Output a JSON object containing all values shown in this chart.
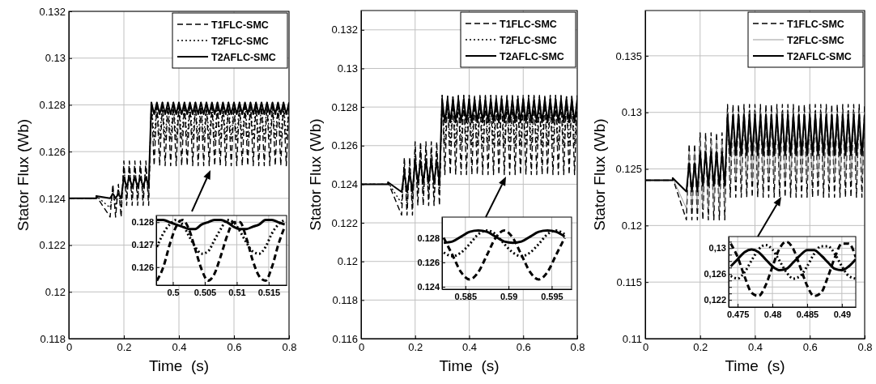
{
  "chart_data": [
    {
      "type": "line",
      "xlabel": "Time  (s)",
      "ylabel": "Stator Flux (Wb)",
      "xlim": [
        0,
        0.8
      ],
      "ylim": [
        0.118,
        0.132
      ],
      "xticks": [
        0,
        0.2,
        0.4,
        0.6,
        0.8
      ],
      "yticks": [
        0.118,
        0.12,
        0.122,
        0.124,
        0.126,
        0.128,
        0.13,
        0.132
      ],
      "grid": true,
      "legend": "top right",
      "x": [
        0,
        0.1,
        0.1,
        0.15,
        0.16,
        0.17,
        0.18,
        0.19,
        0.2,
        0.21,
        0.22,
        0.23,
        0.24,
        0.25,
        0.26,
        0.27,
        0.28,
        0.29,
        0.3,
        0.31,
        0.32,
        0.33,
        0.34,
        0.35,
        0.36,
        0.37,
        0.38,
        0.39,
        0.4,
        0.41,
        0.42,
        0.43,
        0.44,
        0.45,
        0.46,
        0.47,
        0.48,
        0.49,
        0.5,
        0.51,
        0.52,
        0.53,
        0.54,
        0.55,
        0.56,
        0.57,
        0.58,
        0.59,
        0.6,
        0.61,
        0.62,
        0.63,
        0.64,
        0.65,
        0.66,
        0.67,
        0.68,
        0.69,
        0.7,
        0.71,
        0.72,
        0.73,
        0.74,
        0.75,
        0.76,
        0.77,
        0.78,
        0.79,
        0.8
      ],
      "series": [
        {
          "name": "T1FLC-SMC",
          "color": "#000000",
          "line_style": "dashed",
          "values": [
            0.124,
            0.124,
            0.1241,
            0.1232,
            0.1246,
            0.1232,
            0.1246,
            0.1232,
            0.1256,
            0.1237,
            0.1256,
            0.1237,
            0.1256,
            0.1237,
            0.1256,
            0.1237,
            0.1256,
            0.1237,
            0.1281,
            0.1254,
            0.1281,
            0.1254,
            0.1281,
            0.1254,
            0.1281,
            0.1254,
            0.1281,
            0.1254,
            0.1281,
            0.1254,
            0.1281,
            0.1254,
            0.1281,
            0.1254,
            0.1281,
            0.1254,
            0.1281,
            0.1254,
            0.1281,
            0.1254,
            0.1281,
            0.1254,
            0.1281,
            0.1254,
            0.1281,
            0.1254,
            0.1281,
            0.1254,
            0.1281,
            0.1254,
            0.1281,
            0.1254,
            0.1281,
            0.1254,
            0.1281,
            0.1254,
            0.1281,
            0.1254,
            0.1281,
            0.1254,
            0.1281,
            0.1254,
            0.1281,
            0.1254,
            0.1281,
            0.1254,
            0.1281,
            0.1254,
            0.1281
          ]
        },
        {
          "name": "T2FLC-SMC",
          "color": "#000000",
          "line_style": "dotted",
          "values": [
            0.124,
            0.124,
            0.1241,
            0.1236,
            0.1244,
            0.1236,
            0.1244,
            0.1236,
            0.1253,
            0.1241,
            0.1253,
            0.1241,
            0.1253,
            0.1241,
            0.1253,
            0.1241,
            0.1253,
            0.1241,
            0.1281,
            0.1265,
            0.1281,
            0.1265,
            0.1281,
            0.1265,
            0.1281,
            0.1265,
            0.1281,
            0.1265,
            0.1281,
            0.1265,
            0.1281,
            0.1265,
            0.1281,
            0.1265,
            0.1281,
            0.1265,
            0.1281,
            0.1265,
            0.1281,
            0.1265,
            0.1281,
            0.1265,
            0.1281,
            0.1265,
            0.1281,
            0.1265,
            0.1281,
            0.1265,
            0.1281,
            0.1265,
            0.1281,
            0.1265,
            0.1281,
            0.1265,
            0.1281,
            0.1265,
            0.1281,
            0.1265,
            0.1281,
            0.1265,
            0.1281,
            0.1265,
            0.1281,
            0.1265,
            0.1281,
            0.1265,
            0.1281,
            0.1265,
            0.1281
          ]
        },
        {
          "name": "T2AFLC-SMC",
          "color": "#000000",
          "line_style": "solid",
          "values": [
            0.124,
            0.124,
            0.1241,
            0.124,
            0.1242,
            0.124,
            0.1242,
            0.124,
            0.1249,
            0.1245,
            0.1249,
            0.1245,
            0.1249,
            0.1245,
            0.1249,
            0.1245,
            0.1249,
            0.1245,
            0.1281,
            0.1276,
            0.1281,
            0.1276,
            0.1281,
            0.1276,
            0.1281,
            0.1276,
            0.1281,
            0.1276,
            0.1281,
            0.1276,
            0.1281,
            0.1276,
            0.1281,
            0.1276,
            0.1281,
            0.1276,
            0.1281,
            0.1276,
            0.1281,
            0.1276,
            0.1281,
            0.1276,
            0.1281,
            0.1276,
            0.1281,
            0.1276,
            0.1281,
            0.1276,
            0.1281,
            0.1276,
            0.1281,
            0.1276,
            0.1281,
            0.1276,
            0.1281,
            0.1276,
            0.1281,
            0.1276,
            0.1281,
            0.1276,
            0.1281,
            0.1276,
            0.1281,
            0.1276,
            0.1281,
            0.1276,
            0.1281,
            0.1276,
            0.1281
          ]
        }
      ]
    },
    {
      "type": "line",
      "xlabel": "Time  (s)",
      "ylabel": "Stator Flux (Wb)",
      "xlim": [
        0,
        0.8
      ],
      "ylim": [
        0.116,
        0.133
      ],
      "xticks": [
        0,
        0.2,
        0.4,
        0.6,
        0.8
      ],
      "yticks": [
        0.116,
        0.118,
        0.12,
        0.122,
        0.124,
        0.126,
        0.128,
        0.13,
        0.132
      ],
      "grid": true,
      "legend": "top right",
      "x": [
        0,
        0.1,
        0.1,
        0.15,
        0.16,
        0.17,
        0.18,
        0.19,
        0.2,
        0.21,
        0.22,
        0.23,
        0.24,
        0.25,
        0.26,
        0.27,
        0.28,
        0.29,
        0.3,
        0.31,
        0.32,
        0.33,
        0.34,
        0.35,
        0.36,
        0.37,
        0.38,
        0.39,
        0.4,
        0.41,
        0.42,
        0.43,
        0.44,
        0.45,
        0.46,
        0.47,
        0.48,
        0.49,
        0.5,
        0.51,
        0.52,
        0.53,
        0.54,
        0.55,
        0.56,
        0.57,
        0.58,
        0.59,
        0.6,
        0.61,
        0.62,
        0.63,
        0.64,
        0.65,
        0.66,
        0.67,
        0.68,
        0.69,
        0.7,
        0.71,
        0.72,
        0.73,
        0.74,
        0.75,
        0.76,
        0.77,
        0.78,
        0.79,
        0.8
      ],
      "series": [
        {
          "name": "T1FLC-SMC",
          "color": "#000000",
          "line_style": "dashed",
          "values": [
            0.124,
            0.124,
            0.1241,
            0.1224,
            0.1254,
            0.1224,
            0.1254,
            0.1224,
            0.1262,
            0.1229,
            0.1262,
            0.1229,
            0.1262,
            0.1229,
            0.1262,
            0.1229,
            0.1262,
            0.1229,
            0.1286,
            0.1245,
            0.1286,
            0.1245,
            0.1286,
            0.1245,
            0.1286,
            0.1245,
            0.1286,
            0.1245,
            0.1286,
            0.1245,
            0.1286,
            0.1245,
            0.1286,
            0.1245,
            0.1286,
            0.1245,
            0.1286,
            0.1245,
            0.1286,
            0.1245,
            0.1286,
            0.1245,
            0.1286,
            0.1245,
            0.1286,
            0.1245,
            0.1286,
            0.1245,
            0.1286,
            0.1245,
            0.1286,
            0.1245,
            0.1286,
            0.1245,
            0.1286,
            0.1245,
            0.1286,
            0.1245,
            0.1286,
            0.1245,
            0.1286,
            0.1245,
            0.1286,
            0.1245,
            0.1286,
            0.1245,
            0.1286,
            0.1245,
            0.1286
          ]
        },
        {
          "name": "T2FLC-SMC",
          "color": "#000000",
          "line_style": "dotted",
          "values": [
            0.124,
            0.124,
            0.1241,
            0.123,
            0.125,
            0.123,
            0.125,
            0.123,
            0.1258,
            0.1235,
            0.1258,
            0.1235,
            0.1258,
            0.1235,
            0.1258,
            0.1235,
            0.1258,
            0.1235,
            0.1286,
            0.126,
            0.1286,
            0.126,
            0.1286,
            0.126,
            0.1286,
            0.126,
            0.1286,
            0.126,
            0.1286,
            0.126,
            0.1286,
            0.126,
            0.1286,
            0.126,
            0.1286,
            0.126,
            0.1286,
            0.126,
            0.1286,
            0.126,
            0.1286,
            0.126,
            0.1286,
            0.126,
            0.1286,
            0.126,
            0.1286,
            0.126,
            0.1286,
            0.126,
            0.1286,
            0.126,
            0.1286,
            0.126,
            0.1286,
            0.126,
            0.1286,
            0.126,
            0.1286,
            0.126,
            0.1286,
            0.126,
            0.1286,
            0.126,
            0.1286,
            0.126,
            0.1286,
            0.126,
            0.1286
          ]
        },
        {
          "name": "T2AFLC-SMC",
          "color": "#000000",
          "line_style": "solid",
          "values": [
            0.124,
            0.124,
            0.1241,
            0.1236,
            0.1246,
            0.1236,
            0.1246,
            0.1236,
            0.1252,
            0.1241,
            0.1252,
            0.1241,
            0.1252,
            0.1241,
            0.1252,
            0.1241,
            0.1252,
            0.1241,
            0.1284,
            0.1272,
            0.1284,
            0.1272,
            0.1284,
            0.1272,
            0.1284,
            0.1272,
            0.1284,
            0.1272,
            0.1284,
            0.1272,
            0.1284,
            0.1272,
            0.1284,
            0.1272,
            0.1284,
            0.1272,
            0.1284,
            0.1272,
            0.1284,
            0.1272,
            0.1284,
            0.1272,
            0.1284,
            0.1272,
            0.1284,
            0.1272,
            0.1284,
            0.1272,
            0.1284,
            0.1272,
            0.1284,
            0.1272,
            0.1284,
            0.1272,
            0.1284,
            0.1272,
            0.1284,
            0.1272,
            0.1284,
            0.1272,
            0.1284,
            0.1272,
            0.1284,
            0.1272,
            0.1284,
            0.1272,
            0.1284,
            0.1272,
            0.1284
          ]
        }
      ]
    },
    {
      "type": "line",
      "xlabel": "Time  (s)",
      "ylabel": "Stator Flux (Wb)",
      "xlim": [
        0,
        0.8
      ],
      "ylim": [
        0.11,
        0.139
      ],
      "xticks": [
        0,
        0.2,
        0.4,
        0.6,
        0.8
      ],
      "yticks": [
        0.11,
        0.115,
        0.12,
        0.125,
        0.13,
        0.135
      ],
      "grid": true,
      "legend": "top right",
      "x": [
        0,
        0.1,
        0.1,
        0.15,
        0.16,
        0.17,
        0.18,
        0.19,
        0.2,
        0.21,
        0.22,
        0.23,
        0.24,
        0.25,
        0.26,
        0.27,
        0.28,
        0.29,
        0.3,
        0.31,
        0.32,
        0.33,
        0.34,
        0.35,
        0.36,
        0.37,
        0.38,
        0.39,
        0.4,
        0.41,
        0.42,
        0.43,
        0.44,
        0.45,
        0.46,
        0.47,
        0.48,
        0.49,
        0.5,
        0.51,
        0.52,
        0.53,
        0.54,
        0.55,
        0.56,
        0.57,
        0.58,
        0.59,
        0.6,
        0.61,
        0.62,
        0.63,
        0.64,
        0.65,
        0.66,
        0.67,
        0.68,
        0.69,
        0.7,
        0.71,
        0.72,
        0.73,
        0.74,
        0.75,
        0.76,
        0.77,
        0.78,
        0.79,
        0.8
      ],
      "series": [
        {
          "name": "T1FLC-SMC",
          "color": "#000000",
          "line_style": "dashed",
          "values": [
            0.124,
            0.124,
            0.1242,
            0.1205,
            0.1272,
            0.1205,
            0.1272,
            0.1205,
            0.1282,
            0.1205,
            0.1282,
            0.1205,
            0.1282,
            0.1205,
            0.1282,
            0.1205,
            0.1282,
            0.1205,
            0.1307,
            0.1225,
            0.1307,
            0.1225,
            0.1307,
            0.1225,
            0.1307,
            0.1225,
            0.1307,
            0.1225,
            0.1307,
            0.1225,
            0.1307,
            0.1225,
            0.1307,
            0.1225,
            0.1307,
            0.1225,
            0.1307,
            0.1225,
            0.1307,
            0.1225,
            0.1307,
            0.1225,
            0.1307,
            0.1225,
            0.1307,
            0.1225,
            0.1307,
            0.1225,
            0.1307,
            0.1225,
            0.1307,
            0.1225,
            0.1307,
            0.1225,
            0.1307,
            0.1225,
            0.1307,
            0.1225,
            0.1307,
            0.1225,
            0.1307,
            0.1225,
            0.1307,
            0.1225,
            0.1307,
            0.1225,
            0.1307,
            0.1225,
            0.1307
          ]
        },
        {
          "name": "T2FLC-SMC",
          "color": "#808080",
          "line_style": "solid",
          "values": [
            0.124,
            0.124,
            0.1242,
            0.1215,
            0.1265,
            0.1215,
            0.1265,
            0.1215,
            0.1275,
            0.1215,
            0.1275,
            0.1215,
            0.1275,
            0.1215,
            0.1275,
            0.1215,
            0.1275,
            0.1215,
            0.13,
            0.124,
            0.13,
            0.124,
            0.13,
            0.124,
            0.13,
            0.124,
            0.13,
            0.124,
            0.13,
            0.124,
            0.13,
            0.124,
            0.13,
            0.124,
            0.13,
            0.124,
            0.13,
            0.124,
            0.13,
            0.124,
            0.13,
            0.124,
            0.13,
            0.124,
            0.13,
            0.124,
            0.13,
            0.124,
            0.13,
            0.124,
            0.13,
            0.124,
            0.13,
            0.124,
            0.13,
            0.124,
            0.13,
            0.124,
            0.13,
            0.124,
            0.13,
            0.124,
            0.13,
            0.124,
            0.13,
            0.124,
            0.13,
            0.124,
            0.13
          ]
        },
        {
          "name": "T2AFLC-SMC",
          "color": "#000000",
          "line_style": "solid",
          "values": [
            0.124,
            0.124,
            0.1242,
            0.123,
            0.1255,
            0.123,
            0.1255,
            0.123,
            0.1265,
            0.1235,
            0.1265,
            0.1235,
            0.1265,
            0.1235,
            0.1265,
            0.1235,
            0.1265,
            0.1235,
            0.1298,
            0.1262,
            0.1298,
            0.1262,
            0.1298,
            0.1262,
            0.1298,
            0.1262,
            0.1298,
            0.1262,
            0.1298,
            0.1262,
            0.1298,
            0.1262,
            0.1298,
            0.1262,
            0.1298,
            0.1262,
            0.1298,
            0.1262,
            0.1298,
            0.1262,
            0.1298,
            0.1262,
            0.1298,
            0.1262,
            0.1298,
            0.1262,
            0.1298,
            0.1262,
            0.1298,
            0.1262,
            0.1298,
            0.1262,
            0.1298,
            0.1262,
            0.1298,
            0.1262,
            0.1298,
            0.1262,
            0.1298,
            0.1262,
            0.1298,
            0.1262,
            0.1298,
            0.1262,
            0.1298,
            0.1262,
            0.1298,
            0.1262,
            0.1298
          ]
        }
      ]
    },
    {
      "type": "line",
      "xlim": [
        0.4974,
        0.5178
      ],
      "ylim": [
        0.1252,
        0.1283
      ],
      "xticks": [
        0.5,
        0.505,
        0.51,
        0.515
      ],
      "yticks": [
        0.126,
        0.127,
        0.128
      ],
      "grid": true,
      "x": [
        0.4975,
        0.4985,
        0.4995,
        0.5005,
        0.5015,
        0.5025,
        0.5035,
        0.5045,
        0.5055,
        0.5065,
        0.5075,
        0.5085,
        0.5095,
        0.5105,
        0.5115,
        0.5125,
        0.5135,
        0.5145,
        0.5155,
        0.5165,
        0.5175
      ],
      "series": [
        {
          "color": "#000000",
          "line_style": "dashed",
          "values": [
            0.1254,
            0.126,
            0.127,
            0.1278,
            0.1281,
            0.1277,
            0.1268,
            0.1259,
            0.1254,
            0.1257,
            0.1265,
            0.1274,
            0.128,
            0.128,
            0.1273,
            0.1263,
            0.1256,
            0.1254,
            0.126,
            0.127,
            0.1278
          ]
        },
        {
          "color": "#000000",
          "line_style": "dotted",
          "values": [
            0.1269,
            0.1275,
            0.1279,
            0.1281,
            0.1279,
            0.1274,
            0.1269,
            0.1266,
            0.1267,
            0.1272,
            0.1277,
            0.1281,
            0.128,
            0.1276,
            0.1271,
            0.1267,
            0.1266,
            0.1269,
            0.1275,
            0.1279,
            0.1281
          ]
        },
        {
          "color": "#000000",
          "line_style": "solid",
          "values": [
            0.1281,
            0.1281,
            0.128,
            0.1279,
            0.1278,
            0.1277,
            0.1277,
            0.1279,
            0.128,
            0.1281,
            0.1281,
            0.128,
            0.1278,
            0.1277,
            0.1277,
            0.1278,
            0.1279,
            0.1281,
            0.1281,
            0.128,
            0.1279
          ]
        }
      ]
    },
    {
      "type": "line",
      "xlim": [
        0.5823,
        0.5973
      ],
      "ylim": [
        0.1238,
        0.1297
      ],
      "xticks": [
        0.585,
        0.59,
        0.595
      ],
      "yticks": [
        0.124,
        0.126,
        0.128
      ],
      "grid": true,
      "x": [
        0.5825,
        0.5835,
        0.5845,
        0.5855,
        0.5865,
        0.5875,
        0.5885,
        0.5895,
        0.5905,
        0.5915,
        0.5925,
        0.5935,
        0.5945,
        0.5955,
        0.5965
      ],
      "series": [
        {
          "color": "#000000",
          "line_style": "dashed",
          "values": [
            0.128,
            0.1266,
            0.1252,
            0.1246,
            0.1252,
            0.1266,
            0.128,
            0.1286,
            0.128,
            0.1266,
            0.1252,
            0.1246,
            0.1252,
            0.1266,
            0.128
          ]
        },
        {
          "color": "#000000",
          "line_style": "dotted",
          "values": [
            0.1268,
            0.1265,
            0.1268,
            0.1275,
            0.1283,
            0.1286,
            0.1283,
            0.1275,
            0.1268,
            0.1265,
            0.1268,
            0.1275,
            0.1283,
            0.1286,
            0.1283
          ]
        },
        {
          "color": "#000000",
          "line_style": "solid",
          "values": [
            0.1276,
            0.1277,
            0.1281,
            0.1285,
            0.1286,
            0.1285,
            0.1281,
            0.1277,
            0.1276,
            0.1277,
            0.1281,
            0.1285,
            0.1286,
            0.1285,
            0.1281
          ]
        }
      ]
    },
    {
      "type": "line",
      "xlim": [
        0.4737,
        0.492
      ],
      "ylim": [
        0.1209,
        0.1318
      ],
      "xticks": [
        0.475,
        0.48,
        0.485,
        0.49
      ],
      "yticks": [
        {
          "value": 0.122,
          "label": "0,122"
        },
        {
          "value": 0.123,
          "label": null
        },
        {
          "value": 0.124,
          "label": null
        },
        {
          "value": 0.125,
          "label": null
        },
        {
          "value": 0.126,
          "label": "0,126"
        },
        {
          "value": 0.127,
          "label": null
        },
        {
          "value": 0.128,
          "label": null
        },
        {
          "value": 0.129,
          "label": null
        },
        {
          "value": 0.13,
          "label": "0,13"
        },
        {
          "value": 0.131,
          "label": null
        }
      ],
      "grid": true,
      "x": [
        0.474,
        0.475,
        0.476,
        0.477,
        0.478,
        0.479,
        0.48,
        0.481,
        0.482,
        0.483,
        0.484,
        0.485,
        0.486,
        0.487,
        0.488,
        0.489,
        0.49,
        0.491,
        0.492
      ],
      "series": [
        {
          "color": "#000000",
          "line_style": "dashed",
          "values": [
            0.1307,
            0.1286,
            0.1256,
            0.1231,
            0.1226,
            0.1242,
            0.1271,
            0.1299,
            0.131,
            0.1299,
            0.1271,
            0.1242,
            0.1226,
            0.1231,
            0.1256,
            0.1286,
            0.1307,
            0.1307,
            0.1286
          ]
        },
        {
          "color": "#000000",
          "line_style": "dotted",
          "values": [
            0.1257,
            0.1253,
            0.1263,
            0.1281,
            0.1298,
            0.1305,
            0.1298,
            0.1281,
            0.1263,
            0.1253,
            0.1257,
            0.1272,
            0.1291,
            0.1303,
            0.1303,
            0.1291,
            0.1272,
            0.1257,
            0.1253
          ]
        },
        {
          "color": "#000000",
          "line_style": "solid",
          "values": [
            0.1272,
            0.1283,
            0.1294,
            0.1298,
            0.1294,
            0.1283,
            0.1272,
            0.1266,
            0.1268,
            0.1278,
            0.1289,
            0.1297,
            0.1297,
            0.1289,
            0.1278,
            0.1268,
            0.1266,
            0.1272,
            0.1283
          ]
        }
      ]
    }
  ]
}
